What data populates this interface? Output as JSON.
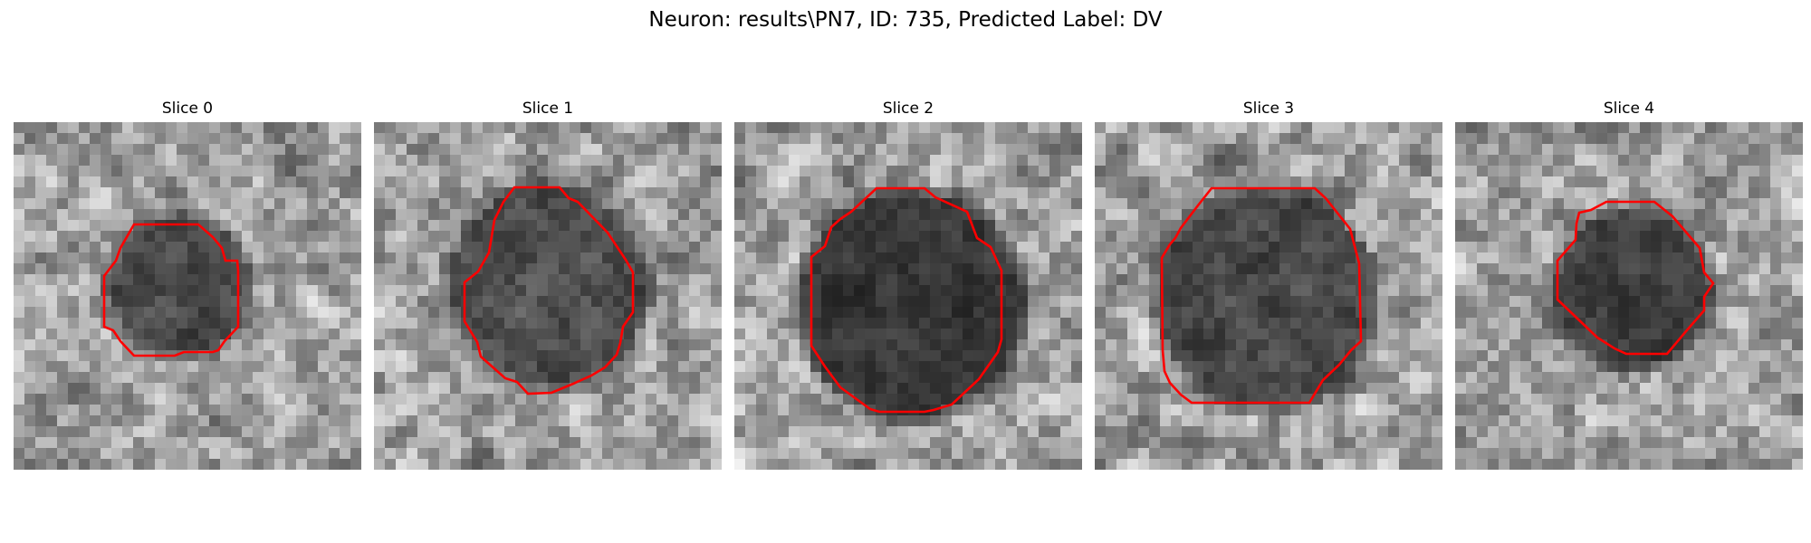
{
  "figure": {
    "title": "Neuron: results\\PN7, ID: 735, Predicted Label: DV",
    "outline_color": "#ff0000",
    "colormap": "gray"
  },
  "panels": [
    {
      "title": "Slice 0",
      "seed": 11,
      "soma_cx": 0.48,
      "soma_cy": 0.47,
      "soma_r": 0.19,
      "soma_depth": 0.55
    },
    {
      "title": "Slice 1",
      "seed": 23,
      "soma_cx": 0.5,
      "soma_cy": 0.47,
      "soma_r": 0.27,
      "soma_depth": 0.5
    },
    {
      "title": "Slice 2",
      "seed": 37,
      "soma_cx": 0.51,
      "soma_cy": 0.52,
      "soma_r": 0.31,
      "soma_depth": 0.65
    },
    {
      "title": "Slice 3",
      "seed": 41,
      "soma_cx": 0.49,
      "soma_cy": 0.51,
      "soma_r": 0.3,
      "soma_depth": 0.55
    },
    {
      "title": "Slice 4",
      "seed": 53,
      "soma_cx": 0.51,
      "soma_cy": 0.48,
      "soma_r": 0.21,
      "soma_depth": 0.6
    }
  ]
}
